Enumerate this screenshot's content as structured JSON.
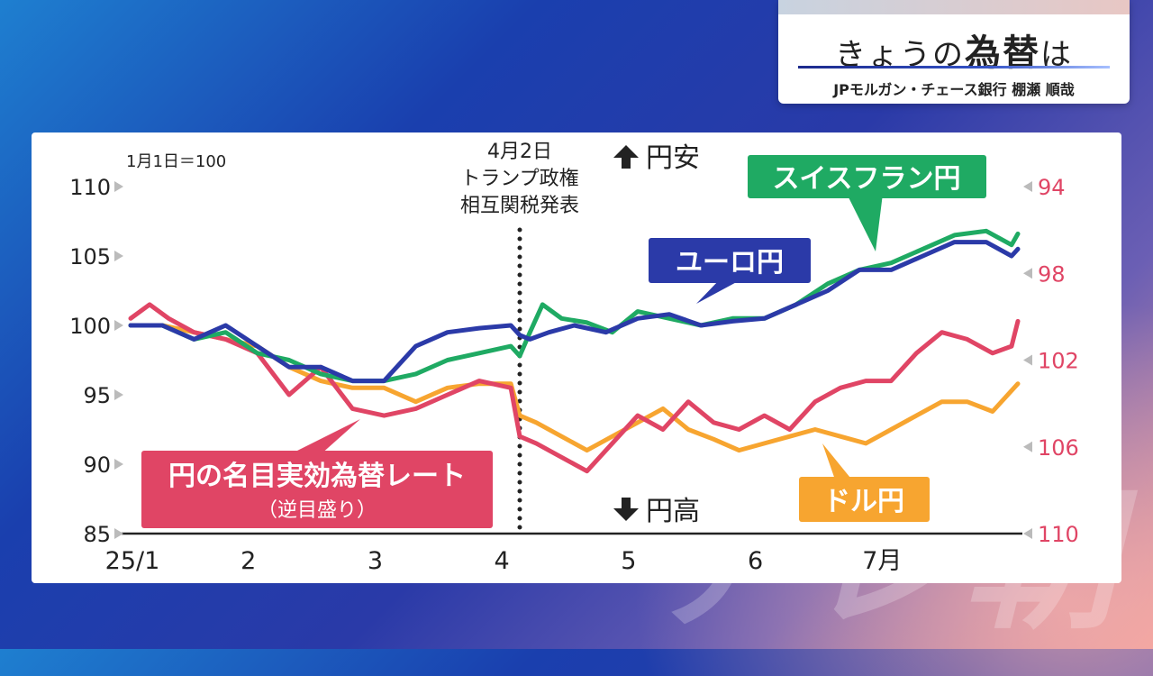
{
  "header": {
    "title_prefix": "きょうの",
    "title_emphasis": "為替",
    "title_suffix": "は",
    "subtitle": "JPモルガン・チェース銀行 棚瀬 順哉"
  },
  "watermark": "テレ朝",
  "chart_data": {
    "type": "line",
    "note": "1月1日＝100",
    "x_tick_labels": [
      "25/1",
      "2",
      "3",
      "4",
      "5",
      "6",
      "7月"
    ],
    "x_month_range": [
      1.0,
      8.0
    ],
    "y_left": {
      "ticks": [
        110,
        105,
        100,
        95,
        90,
        85
      ],
      "range": [
        85,
        110
      ]
    },
    "y_right": {
      "ticks": [
        94,
        98,
        102,
        106,
        110
      ],
      "range": [
        94,
        110
      ],
      "inverted": true
    },
    "annotation": {
      "x": 4.07,
      "lines": [
        "4月2日",
        "トランプ政権",
        "相互関税発表"
      ]
    },
    "direction_labels": {
      "up": "円安",
      "down": "円高"
    },
    "series": [
      {
        "name": "スイスフラン円",
        "color": "#1faa63",
        "axis": "left",
        "x": [
          1.0,
          1.25,
          1.5,
          1.75,
          2.0,
          2.25,
          2.5,
          2.75,
          3.0,
          3.25,
          3.5,
          3.75,
          4.0,
          4.07,
          4.15,
          4.25,
          4.4,
          4.6,
          4.8,
          5.0,
          5.25,
          5.5,
          5.75,
          6.0,
          6.25,
          6.5,
          6.75,
          7.0,
          7.25,
          7.5,
          7.75,
          7.95,
          8.0
        ],
        "values": [
          100.0,
          100.0,
          99.0,
          99.5,
          98.0,
          97.5,
          96.5,
          96.0,
          96.0,
          96.5,
          97.5,
          98.0,
          98.5,
          97.8,
          99.5,
          101.5,
          100.5,
          100.2,
          99.5,
          101.0,
          100.5,
          100.0,
          100.5,
          100.5,
          101.5,
          103.0,
          104.0,
          104.5,
          105.5,
          106.5,
          106.8,
          105.8,
          106.6
        ]
      },
      {
        "name": "ユーロ円",
        "color": "#2b3aa8",
        "axis": "left",
        "x": [
          1.0,
          1.25,
          1.5,
          1.75,
          2.0,
          2.25,
          2.5,
          2.75,
          3.0,
          3.25,
          3.5,
          3.75,
          4.0,
          4.07,
          4.15,
          4.3,
          4.5,
          4.75,
          5.0,
          5.25,
          5.5,
          5.75,
          6.0,
          6.25,
          6.5,
          6.75,
          7.0,
          7.25,
          7.5,
          7.75,
          7.95,
          8.0
        ],
        "values": [
          100.0,
          100.0,
          99.0,
          100.0,
          98.5,
          97.0,
          97.0,
          96.0,
          96.0,
          98.5,
          99.5,
          99.8,
          100.0,
          99.3,
          99.0,
          99.5,
          100.0,
          99.5,
          100.5,
          100.8,
          100.0,
          100.3,
          100.5,
          101.5,
          102.5,
          104.0,
          104.0,
          105.0,
          106.0,
          106.0,
          105.0,
          105.5
        ]
      },
      {
        "name": "ドル円",
        "color": "#f7a530",
        "axis": "left",
        "x": [
          1.0,
          1.25,
          1.5,
          1.75,
          2.0,
          2.25,
          2.5,
          2.75,
          3.0,
          3.25,
          3.5,
          3.75,
          4.0,
          4.07,
          4.2,
          4.4,
          4.6,
          4.8,
          5.0,
          5.2,
          5.4,
          5.6,
          5.8,
          6.0,
          6.2,
          6.4,
          6.6,
          6.8,
          7.0,
          7.2,
          7.4,
          7.6,
          7.8,
          8.0
        ],
        "values": [
          100.0,
          100.0,
          99.5,
          99.0,
          98.5,
          97.0,
          96.0,
          95.5,
          95.5,
          94.5,
          95.5,
          95.8,
          95.8,
          93.5,
          93.0,
          92.0,
          91.0,
          92.0,
          93.0,
          94.0,
          92.5,
          91.8,
          91.0,
          91.5,
          92.0,
          92.5,
          92.0,
          91.5,
          92.5,
          93.5,
          94.5,
          94.5,
          93.8,
          95.8
        ]
      },
      {
        "name": "円の名目実効為替レート",
        "sublabel": "（逆目盛り）",
        "color": "#e04565",
        "axis": "left",
        "x": [
          1.0,
          1.15,
          1.3,
          1.5,
          1.75,
          2.0,
          2.25,
          2.5,
          2.75,
          3.0,
          3.25,
          3.5,
          3.75,
          4.0,
          4.07,
          4.2,
          4.4,
          4.6,
          4.8,
          5.0,
          5.2,
          5.4,
          5.6,
          5.8,
          6.0,
          6.2,
          6.4,
          6.6,
          6.8,
          7.0,
          7.2,
          7.4,
          7.6,
          7.8,
          7.95,
          8.0
        ],
        "values": [
          100.5,
          101.5,
          100.5,
          99.5,
          99.0,
          98.0,
          95.0,
          97.0,
          94.0,
          93.5,
          94.0,
          95.0,
          96.0,
          95.5,
          92.0,
          91.5,
          90.5,
          89.5,
          91.5,
          93.5,
          92.5,
          94.5,
          93.0,
          92.5,
          93.5,
          92.5,
          94.5,
          95.5,
          96.0,
          96.0,
          98.0,
          99.5,
          99.0,
          98.0,
          98.5,
          100.3
        ]
      }
    ],
    "series_labels": [
      "スイスフラン円",
      "ユーロ円",
      "円の名目実効為替レート",
      "（逆目盛り）",
      "ドル円"
    ]
  }
}
